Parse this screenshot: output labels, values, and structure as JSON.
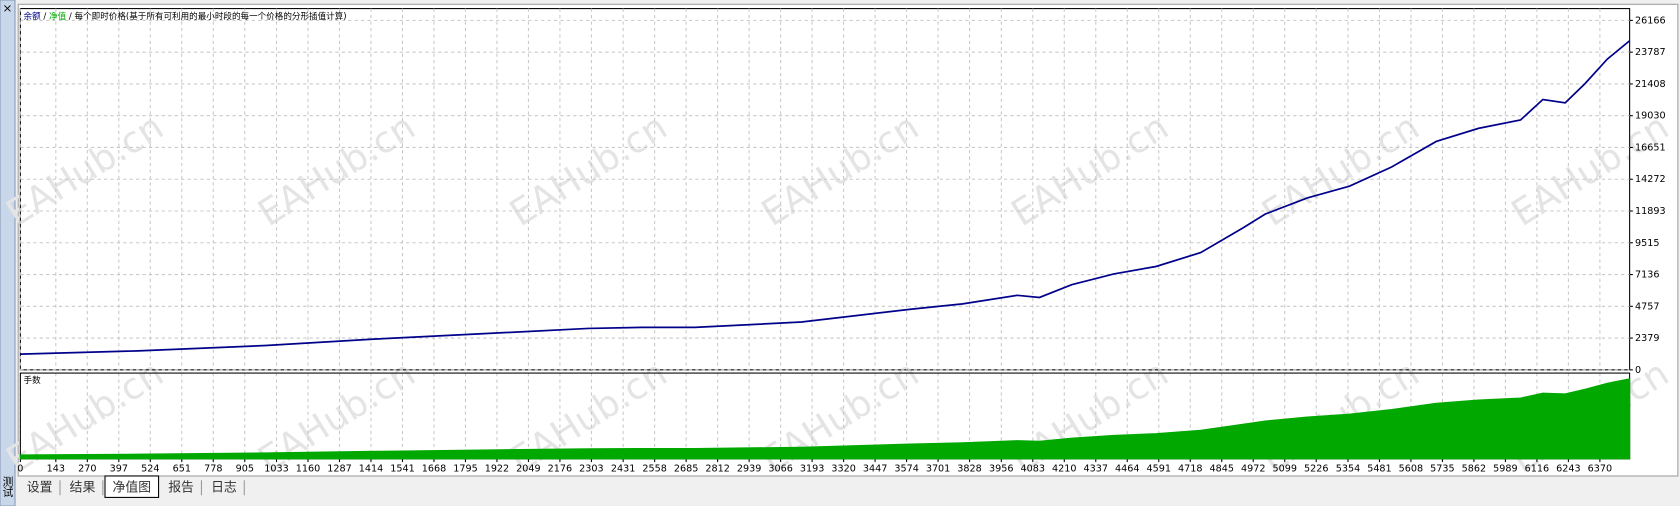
{
  "close_button": "×",
  "side_label": "测试",
  "legend": {
    "balance": "余额",
    "sep1": "/",
    "equity": "净值",
    "sep2": "/",
    "mode": "每个即时价格(基于所有可利用的最小时段的每一个价格的分形插值计算)"
  },
  "watermark": "EAHub.cn",
  "chart_data": [
    {
      "type": "line",
      "x": [
        0,
        475,
        990,
        1425,
        1860,
        2290,
        2510,
        2720,
        3150,
        3370,
        3590,
        3800,
        4020,
        4110,
        4240,
        4410,
        4580,
        4760,
        4930,
        5020,
        5190,
        5360,
        5530,
        5710,
        5880,
        6050,
        6140,
        6230,
        6310,
        6400,
        6490
      ],
      "series": [
        {
          "name": "余额",
          "color": "#00008b",
          "values": [
            1180,
            1420,
            1820,
            2300,
            2700,
            3100,
            3180,
            3180,
            3580,
            4060,
            4540,
            4940,
            5580,
            5420,
            6380,
            7180,
            7740,
            8780,
            10620,
            11660,
            12870,
            13750,
            15190,
            17100,
            18080,
            18710,
            20240,
            19990,
            21430,
            23270,
            24640
          ]
        }
      ],
      "xlim": [
        0,
        6490
      ],
      "ylim": [
        0,
        27050
      ],
      "xticks": [
        0,
        143,
        270,
        397,
        524,
        651,
        778,
        905,
        1033,
        1160,
        1287,
        1414,
        1541,
        1668,
        1795,
        1922,
        2049,
        2176,
        2303,
        2431,
        2558,
        2685,
        2812,
        2939,
        3066,
        3193,
        3320,
        3447,
        3574,
        3701,
        3828,
        3956,
        4083,
        4210,
        4337,
        4464,
        4591,
        4718,
        4845,
        4972,
        5099,
        5226,
        5354,
        5481,
        5608,
        5735,
        5862,
        5989,
        6116,
        6243,
        6370
      ],
      "yticks": [
        0,
        2379,
        4757,
        7136,
        9515,
        11893,
        14272,
        16651,
        19030,
        21408,
        23787,
        26166
      ],
      "grid": true
    },
    {
      "type": "area",
      "title": "手数",
      "color": "#00a800",
      "x": [
        0,
        475,
        990,
        1425,
        1860,
        2290,
        2510,
        2720,
        3150,
        3370,
        3590,
        3800,
        4020,
        4110,
        4240,
        4410,
        4580,
        4760,
        4930,
        5020,
        5190,
        5360,
        5530,
        5710,
        5880,
        6050,
        6140,
        6230,
        6310,
        6400,
        6490
      ],
      "values": [
        3.6,
        4.3,
        5.5,
        7,
        8.2,
        9.4,
        9.6,
        9.6,
        10.8,
        12.3,
        13.8,
        15,
        16.9,
        16.4,
        19.3,
        21.8,
        23.5,
        26.6,
        32.2,
        35.3,
        39,
        41.7,
        46,
        51.8,
        54.8,
        56.7,
        61.3,
        60.6,
        64.9,
        70.5,
        74.7
      ],
      "xlim": [
        0,
        6490
      ],
      "ylim": [
        0,
        80
      ]
    }
  ],
  "tabs": [
    "设置",
    "结果",
    "净值图",
    "报告",
    "日志"
  ],
  "active_tab": 2
}
